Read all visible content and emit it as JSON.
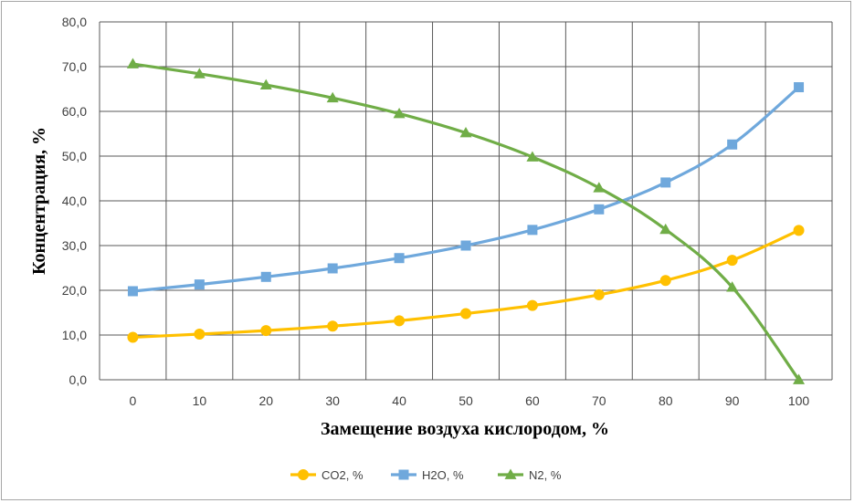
{
  "chart_data": {
    "type": "line",
    "xlabel": "Замещение воздуха кислородом, %",
    "ylabel": "Концентрация, %",
    "x": [
      0,
      10,
      20,
      30,
      40,
      50,
      60,
      70,
      80,
      90,
      100
    ],
    "x_ticks": [
      "0",
      "10",
      "20",
      "30",
      "40",
      "50",
      "60",
      "70",
      "80",
      "90",
      "100"
    ],
    "ylim": [
      0,
      80
    ],
    "y_ticks": [
      "0,0",
      "10,0",
      "20,0",
      "30,0",
      "40,0",
      "50,0",
      "60,0",
      "70,0",
      "80,0"
    ],
    "grid": true,
    "legend_position": "bottom",
    "series": [
      {
        "name": "CO2, %",
        "color": "#ffc000",
        "marker": "circle",
        "values": [
          9.5,
          10.2,
          11.0,
          12.0,
          13.2,
          14.8,
          16.6,
          19.0,
          22.2,
          26.7,
          33.4
        ]
      },
      {
        "name": "H2O, %",
        "color": "#6fa8dc",
        "marker": "square",
        "values": [
          19.8,
          21.3,
          23.0,
          24.9,
          27.2,
          30.0,
          33.5,
          38.1,
          44.1,
          52.6,
          65.4
        ]
      },
      {
        "name": "N2, %",
        "color": "#70ad47",
        "marker": "triangle",
        "values": [
          70.6,
          68.4,
          65.9,
          63.0,
          59.5,
          55.2,
          49.8,
          42.9,
          33.6,
          20.7,
          0.0
        ]
      }
    ]
  }
}
